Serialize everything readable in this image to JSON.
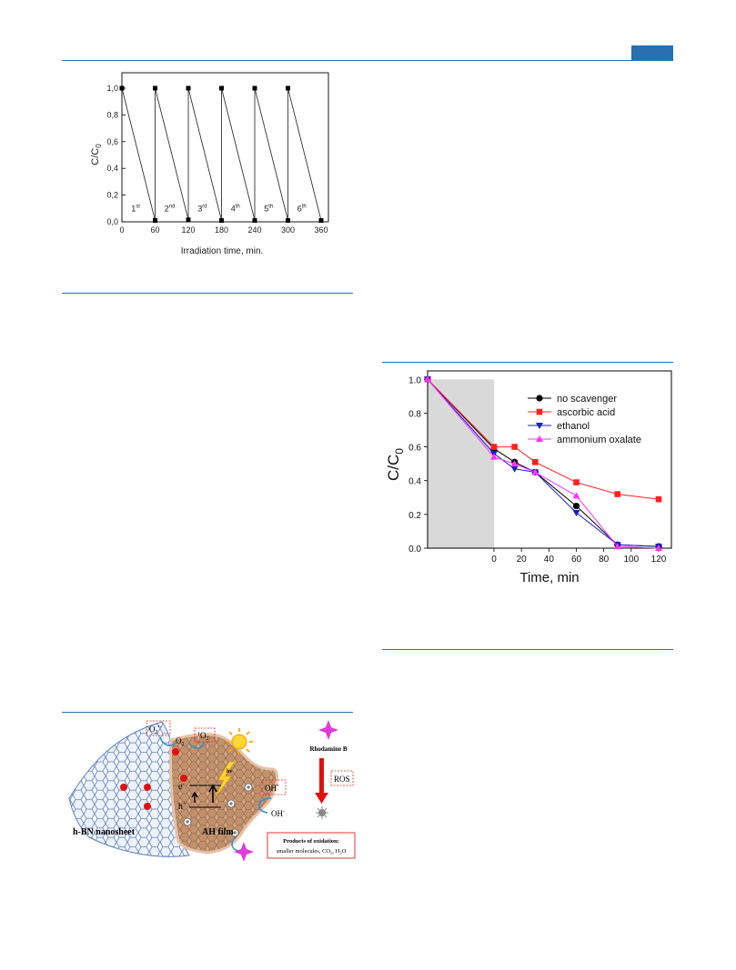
{
  "header": {
    "badge_color": "#2a6fb0",
    "rule_color": "#2a6fb0"
  },
  "chart_data": [
    {
      "type": "line",
      "title": "",
      "xlabel": "Irradiation time, min.",
      "ylabel": "C/C",
      "ylabel_sub": "0",
      "xlim": [
        0,
        360
      ],
      "ylim": [
        0,
        1.0
      ],
      "x_ticks": [
        0,
        60,
        120,
        180,
        240,
        300,
        360
      ],
      "y_ticks": [
        "0,0",
        "0,2",
        "0,4",
        "0,6",
        "0,8",
        "1,0"
      ],
      "y_tick_values": [
        0,
        0.2,
        0.4,
        0.6,
        0.8,
        1.0
      ],
      "cycle_labels": [
        {
          "num": "1",
          "sup": "st",
          "x": 30
        },
        {
          "num": "2",
          "sup": "nd",
          "x": 90
        },
        {
          "num": "3",
          "sup": "rd",
          "x": 150
        },
        {
          "num": "4",
          "sup": "th",
          "x": 210
        },
        {
          "num": "5",
          "sup": "th",
          "x": 270
        },
        {
          "num": "6",
          "sup": "th",
          "x": 330
        }
      ],
      "series": [
        {
          "points": [
            [
              0,
              1.0
            ],
            [
              60,
              0.01
            ],
            [
              60,
              1.0
            ],
            [
              120,
              0.015
            ],
            [
              120,
              1.0
            ],
            [
              180,
              0.01
            ],
            [
              180,
              1.0
            ],
            [
              240,
              0.01
            ],
            [
              240,
              1.0
            ],
            [
              300,
              0.01
            ],
            [
              300,
              1.0
            ],
            [
              360,
              0.01
            ]
          ]
        }
      ],
      "grid": false
    },
    {
      "type": "line",
      "title": "",
      "xlabel": "Time, min",
      "ylabel": "C/C",
      "ylabel_sub": "0",
      "xlim": [
        -50,
        125
      ],
      "ylim": [
        0,
        1.05
      ],
      "x_ticks": [
        0,
        20,
        40,
        60,
        80,
        100,
        120
      ],
      "y_ticks": [
        "0.0",
        "0.2",
        "0.4",
        "0.6",
        "0.8",
        "1.0"
      ],
      "y_tick_values": [
        0,
        0.2,
        0.4,
        0.6,
        0.8,
        1.0
      ],
      "dark_region": [
        -50,
        0
      ],
      "legend_position": "top-right",
      "series": [
        {
          "name": "no scavenger",
          "color": "#000000",
          "marker": "circle",
          "x": [
            -50,
            0,
            15,
            30,
            60,
            90,
            120
          ],
          "y": [
            1.0,
            0.59,
            0.51,
            0.45,
            0.25,
            0.02,
            0.01
          ]
        },
        {
          "name": "ascorbic acid",
          "color": "#ff2020",
          "marker": "square",
          "x": [
            -50,
            0,
            15,
            30,
            60,
            90,
            120
          ],
          "y": [
            1.0,
            0.6,
            0.6,
            0.51,
            0.39,
            0.32,
            0.29
          ]
        },
        {
          "name": "ethanol",
          "color": "#1a1adb",
          "marker": "triangle-down",
          "x": [
            -50,
            0,
            15,
            30,
            60,
            90,
            120
          ],
          "y": [
            1.0,
            0.56,
            0.47,
            0.45,
            0.21,
            0.02,
            0.01
          ]
        },
        {
          "name": "ammonium oxalate",
          "color": "#ff33ff",
          "marker": "triangle-up",
          "x": [
            -50,
            0,
            15,
            30,
            60,
            90,
            120
          ],
          "y": [
            1.0,
            0.54,
            0.5,
            0.45,
            0.31,
            0.01,
            0.0
          ]
        }
      ],
      "grid": false
    }
  ],
  "diagram": {
    "nanosheet_label": "h-BN nanosheet",
    "film_label": "AH film",
    "o2_radical": "O",
    "o2_radical_sub": "2",
    "o2_radical_sup": "•-",
    "o2": "O",
    "o2_sub": "2",
    "singlet_o2_sup": "1",
    "singlet_o2": "O",
    "singlet_o2_sub": "2",
    "electron": "e",
    "electron_sup": "-",
    "hole": "h",
    "hole_sup": "+",
    "hv": "hv",
    "oh_radical": "OH",
    "oh_radical_sup": "•",
    "oh_minus": "OH",
    "oh_minus_sup": "-",
    "rhodamine": "Rhodamine B",
    "ros": "ROS",
    "products_title": "Products of oxidation:",
    "products_text": "smaller molecules, CO",
    "products_co2_sub": "2",
    "products_comma": ", H",
    "products_h2o_sub": "2",
    "products_o": "O"
  }
}
